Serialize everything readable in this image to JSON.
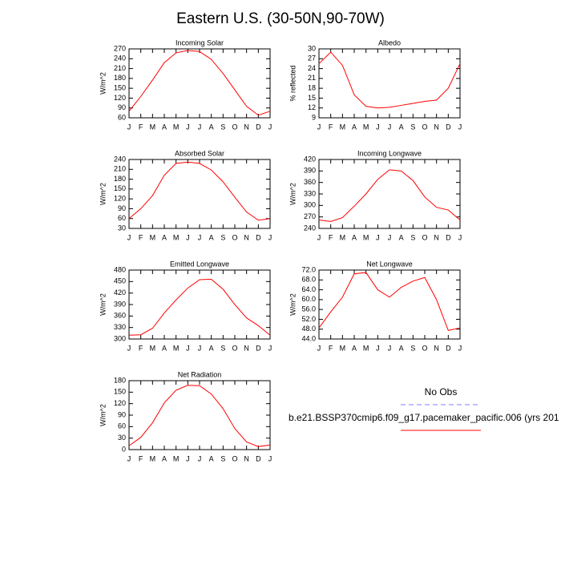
{
  "title": "Eastern U.S. (30-50N,90-70W)",
  "chart_data": [
    {
      "type": "line",
      "title": "Incoming Solar",
      "ylabel": "W/m^2",
      "categories": [
        "J",
        "F",
        "M",
        "A",
        "M",
        "J",
        "J",
        "A",
        "S",
        "O",
        "N",
        "D",
        "J"
      ],
      "series": [
        {
          "color": "#ff0000",
          "values": [
            80,
            125,
            175,
            228,
            258,
            265,
            262,
            238,
            195,
            145,
            95,
            68,
            80
          ]
        }
      ],
      "ylim": [
        60,
        270
      ],
      "yticks": [
        60,
        90,
        120,
        150,
        180,
        210,
        240,
        270
      ]
    },
    {
      "type": "line",
      "title": "Albedo",
      "ylabel": "% reflected",
      "categories": [
        "J",
        "F",
        "M",
        "A",
        "M",
        "J",
        "J",
        "A",
        "S",
        "O",
        "N",
        "D",
        "J"
      ],
      "series": [
        {
          "color": "#ff0000",
          "values": [
            25.5,
            29,
            25,
            16,
            12.5,
            12,
            12.2,
            12.8,
            13.4,
            14,
            14.4,
            18,
            25.5
          ]
        }
      ],
      "ylim": [
        9,
        30
      ],
      "yticks": [
        9,
        12,
        15,
        18,
        21,
        24,
        27,
        30
      ]
    },
    {
      "type": "line",
      "title": "Absorbed Solar",
      "ylabel": "W/m^2",
      "categories": [
        "J",
        "F",
        "M",
        "A",
        "M",
        "J",
        "J",
        "A",
        "S",
        "O",
        "N",
        "D",
        "J"
      ],
      "series": [
        {
          "color": "#ff0000",
          "values": [
            60,
            90,
            130,
            192,
            228,
            232,
            228,
            208,
            172,
            125,
            80,
            55,
            60
          ]
        }
      ],
      "ylim": [
        30,
        240
      ],
      "yticks": [
        30,
        60,
        90,
        120,
        150,
        180,
        210,
        240
      ]
    },
    {
      "type": "line",
      "title": "Incoming Longwave",
      "ylabel": "W/m^2",
      "categories": [
        "J",
        "F",
        "M",
        "A",
        "M",
        "J",
        "J",
        "A",
        "S",
        "O",
        "N",
        "D",
        "J"
      ],
      "series": [
        {
          "color": "#ff0000",
          "values": [
            262,
            258,
            268,
            298,
            330,
            368,
            393,
            390,
            365,
            322,
            295,
            288,
            262
          ]
        }
      ],
      "ylim": [
        240,
        420
      ],
      "yticks": [
        240,
        270,
        300,
        330,
        360,
        390,
        420
      ]
    },
    {
      "type": "line",
      "title": "Emitted Longwave",
      "ylabel": "W/m^2",
      "categories": [
        "J",
        "F",
        "M",
        "A",
        "M",
        "J",
        "J",
        "A",
        "S",
        "O",
        "N",
        "D",
        "J"
      ],
      "series": [
        {
          "color": "#ff0000",
          "values": [
            310,
            311,
            328,
            368,
            402,
            433,
            455,
            456,
            430,
            390,
            355,
            335,
            310
          ]
        }
      ],
      "ylim": [
        300,
        480
      ],
      "yticks": [
        300,
        330,
        360,
        390,
        420,
        450,
        480
      ]
    },
    {
      "type": "line",
      "title": "Net Longwave",
      "ylabel": "W/m^2",
      "categories": [
        "J",
        "F",
        "M",
        "A",
        "M",
        "J",
        "J",
        "A",
        "S",
        "O",
        "N",
        "D",
        "J"
      ],
      "series": [
        {
          "color": "#ff0000",
          "values": [
            48.5,
            55,
            61,
            70.5,
            71,
            64,
            61,
            65,
            67.5,
            69,
            60,
            47.5,
            48.5
          ]
        }
      ],
      "ylim": [
        44,
        72
      ],
      "yticks": [
        {
          "value": 44,
          "label": "44.0"
        },
        {
          "value": 48,
          "label": "48.0"
        },
        {
          "value": 52,
          "label": "52.0"
        },
        {
          "value": 56,
          "label": "56.0"
        },
        {
          "value": 60,
          "label": "60.0"
        },
        {
          "value": 64,
          "label": "64.0"
        },
        {
          "value": 68,
          "label": "68.0"
        },
        {
          "value": 72,
          "label": "72.0"
        }
      ]
    },
    {
      "type": "line",
      "title": "Net Radiation",
      "ylabel": "W/m^2",
      "categories": [
        "J",
        "F",
        "M",
        "A",
        "M",
        "J",
        "J",
        "A",
        "S",
        "O",
        "N",
        "D",
        "J"
      ],
      "series": [
        {
          "color": "#ff0000",
          "values": [
            10,
            32,
            70,
            122,
            155,
            168,
            167,
            145,
            107,
            55,
            20,
            8,
            12
          ]
        }
      ],
      "ylim": [
        0,
        180
      ],
      "yticks": [
        0,
        30,
        60,
        90,
        120,
        150,
        180
      ]
    }
  ],
  "legend": [
    {
      "label": "No Obs",
      "color": "#8080ff",
      "dashed": true
    },
    {
      "label": "b.e21.BSSP370cmip6.f09_g17.pacemaker_pacific.006 (yrs 201",
      "color": "#ff0000",
      "dashed": false
    }
  ]
}
